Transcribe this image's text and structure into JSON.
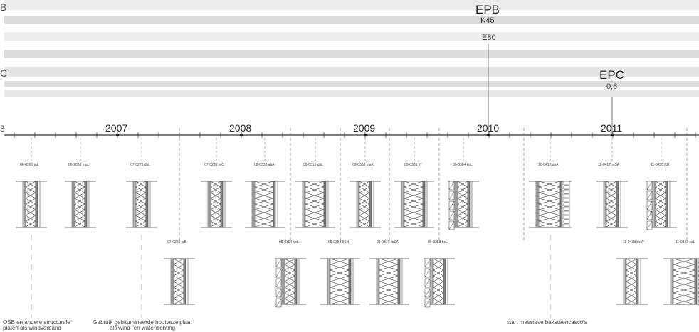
{
  "colors": {
    "band_light": "#ececec",
    "band_dark": "#dcdcdc",
    "line": "#333333",
    "dash": "#777777"
  },
  "edge_labels": [
    "B",
    "C",
    "3"
  ],
  "epb": {
    "title": "EPB",
    "k_value": "K45",
    "e_value": "E80"
  },
  "epc": {
    "title": "EPC",
    "value": "0,6"
  },
  "years": [
    {
      "label": "2007"
    },
    {
      "label": "2008"
    },
    {
      "label": "2009"
    },
    {
      "label": "2010"
    },
    {
      "label": "2011"
    }
  ],
  "top_codes": [
    "06-0261 jaL",
    "06-2068 mgL",
    "07-0273 dhL",
    "07-0286 reO",
    "08-0333 abA",
    "08-0315 gbL",
    "09-0358 maK",
    "09-0381 liT",
    "09-0384 knL",
    "10-0412 dnA",
    "11-0417 mSA",
    "11-0436 jkB"
  ],
  "bottom_codes": [
    "07-0285 laB",
    "08-0304 ceL",
    "08-0353 IlSN",
    "09-0370 rbSA",
    "09-0383 hcL",
    "11-0433 beW",
    "11-0443 saL"
  ],
  "notes": {
    "osb": [
      "OSB en andere structurele",
      "platen als windverband"
    ],
    "bitumen": [
      "Gebruik gebitumineerde houtvezelplaat",
      "als wind- en waterdichting"
    ],
    "brick": [
      "start massieve baksteencasco's"
    ]
  }
}
